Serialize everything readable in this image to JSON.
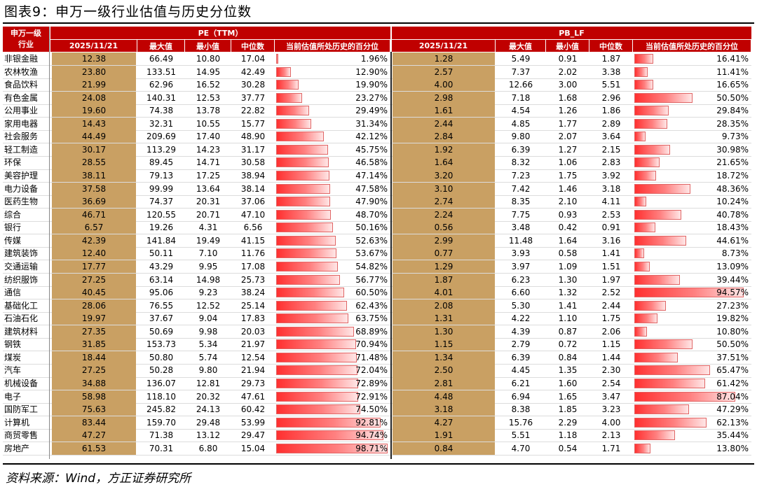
{
  "title": "图表9：申万一级行业估值与历史分位数",
  "source": "资料来源：Wind，方正证券研究所",
  "header": {
    "corner_line1": "申万一级",
    "corner_line2": "行业",
    "pe_group": "PE（TTM）",
    "pb_group": "PB_LF",
    "pe_cols": [
      "2025/11/21",
      "最大值",
      "最小值",
      "中位数",
      "当前估值所处历史的百分位"
    ],
    "pb_cols": [
      "2025/11/21",
      "最大值",
      "最小值",
      "中位数",
      "当前估值所处历史的百分位"
    ]
  },
  "colors": {
    "header": "#c00000",
    "current": "#c9a063",
    "bar": "#ff3030"
  },
  "rows": [
    {
      "name": "非银金融",
      "pe": [
        "12.38",
        "66.49",
        "10.80",
        "17.04",
        "1.96%"
      ],
      "pe_pct": 1.96,
      "pb": [
        "1.28",
        "5.49",
        "0.91",
        "1.87",
        "16.41%"
      ],
      "pb_pct": 16.41
    },
    {
      "name": "农林牧渔",
      "pe": [
        "23.80",
        "133.51",
        "14.95",
        "42.49",
        "12.90%"
      ],
      "pe_pct": 12.9,
      "pb": [
        "2.57",
        "7.37",
        "2.02",
        "3.38",
        "11.41%"
      ],
      "pb_pct": 11.41
    },
    {
      "name": "食品饮料",
      "pe": [
        "21.99",
        "62.96",
        "16.52",
        "30.28",
        "19.90%"
      ],
      "pe_pct": 19.9,
      "pb": [
        "4.00",
        "12.66",
        "3.00",
        "5.51",
        "16.65%"
      ],
      "pb_pct": 16.65
    },
    {
      "name": "有色金属",
      "pe": [
        "24.08",
        "140.31",
        "12.53",
        "37.77",
        "23.27%"
      ],
      "pe_pct": 23.27,
      "pb": [
        "2.98",
        "7.18",
        "1.68",
        "2.96",
        "50.50%"
      ],
      "pb_pct": 50.5
    },
    {
      "name": "公用事业",
      "pe": [
        "19.60",
        "74.38",
        "13.78",
        "22.82",
        "29.49%"
      ],
      "pe_pct": 29.49,
      "pb": [
        "1.61",
        "4.54",
        "1.26",
        "1.86",
        "29.84%"
      ],
      "pb_pct": 29.84
    },
    {
      "name": "家用电器",
      "pe": [
        "14.43",
        "32.31",
        "10.55",
        "15.77",
        "31.34%"
      ],
      "pe_pct": 31.34,
      "pb": [
        "2.44",
        "4.85",
        "1.77",
        "2.89",
        "28.35%"
      ],
      "pb_pct": 28.35
    },
    {
      "name": "社会服务",
      "pe": [
        "44.49",
        "209.69",
        "17.40",
        "48.90",
        "42.12%"
      ],
      "pe_pct": 42.12,
      "pb": [
        "2.84",
        "9.80",
        "2.07",
        "3.64",
        "9.73%"
      ],
      "pb_pct": 9.73
    },
    {
      "name": "轻工制造",
      "pe": [
        "30.17",
        "113.29",
        "14.23",
        "31.17",
        "45.75%"
      ],
      "pe_pct": 45.75,
      "pb": [
        "1.92",
        "6.39",
        "1.27",
        "2.15",
        "30.98%"
      ],
      "pb_pct": 30.98
    },
    {
      "name": "环保",
      "pe": [
        "28.55",
        "89.45",
        "14.71",
        "30.58",
        "46.58%"
      ],
      "pe_pct": 46.58,
      "pb": [
        "1.64",
        "8.32",
        "1.06",
        "2.83",
        "21.65%"
      ],
      "pb_pct": 21.65
    },
    {
      "name": "美容护理",
      "pe": [
        "38.11",
        "79.13",
        "17.25",
        "38.94",
        "47.14%"
      ],
      "pe_pct": 47.14,
      "pb": [
        "3.20",
        "7.23",
        "1.75",
        "3.92",
        "18.72%"
      ],
      "pb_pct": 18.72
    },
    {
      "name": "电力设备",
      "pe": [
        "37.58",
        "99.99",
        "13.64",
        "38.14",
        "47.58%"
      ],
      "pe_pct": 47.58,
      "pb": [
        "3.10",
        "7.42",
        "1.46",
        "3.18",
        "48.36%"
      ],
      "pb_pct": 48.36
    },
    {
      "name": "医药生物",
      "pe": [
        "36.69",
        "74.37",
        "20.31",
        "37.06",
        "47.90%"
      ],
      "pe_pct": 47.9,
      "pb": [
        "2.74",
        "8.35",
        "2.10",
        "4.11",
        "10.24%"
      ],
      "pb_pct": 10.24
    },
    {
      "name": "综合",
      "pe": [
        "46.71",
        "120.55",
        "20.71",
        "47.10",
        "48.70%"
      ],
      "pe_pct": 48.7,
      "pb": [
        "2.24",
        "7.75",
        "0.93",
        "2.53",
        "40.78%"
      ],
      "pb_pct": 40.78
    },
    {
      "name": "银行",
      "pe": [
        "6.57",
        "19.26",
        "4.31",
        "6.56",
        "50.16%"
      ],
      "pe_pct": 50.16,
      "pb": [
        "0.56",
        "3.48",
        "0.42",
        "0.91",
        "18.43%"
      ],
      "pb_pct": 18.43
    },
    {
      "name": "传媒",
      "pe": [
        "42.39",
        "141.84",
        "19.49",
        "41.15",
        "52.63%"
      ],
      "pe_pct": 52.63,
      "pb": [
        "2.99",
        "11.48",
        "1.64",
        "3.16",
        "44.61%"
      ],
      "pb_pct": 44.61
    },
    {
      "name": "建筑装饰",
      "pe": [
        "12.40",
        "50.11",
        "7.10",
        "11.76",
        "53.67%"
      ],
      "pe_pct": 53.67,
      "pb": [
        "0.77",
        "3.93",
        "0.58",
        "1.41",
        "8.73%"
      ],
      "pb_pct": 8.73
    },
    {
      "name": "交通运输",
      "pe": [
        "17.77",
        "43.29",
        "9.95",
        "17.08",
        "54.82%"
      ],
      "pe_pct": 54.82,
      "pb": [
        "1.29",
        "3.97",
        "1.09",
        "1.51",
        "13.09%"
      ],
      "pb_pct": 13.09
    },
    {
      "name": "纺织服饰",
      "pe": [
        "27.25",
        "63.14",
        "14.98",
        "25.73",
        "56.77%"
      ],
      "pe_pct": 56.77,
      "pb": [
        "1.87",
        "6.23",
        "1.30",
        "1.97",
        "39.44%"
      ],
      "pb_pct": 39.44
    },
    {
      "name": "通信",
      "pe": [
        "40.45",
        "95.06",
        "9.23",
        "38.24",
        "60.50%"
      ],
      "pe_pct": 60.5,
      "pb": [
        "4.01",
        "6.60",
        "1.32",
        "2.52",
        "94.57%"
      ],
      "pb_pct": 94.57
    },
    {
      "name": "基础化工",
      "pe": [
        "28.06",
        "76.55",
        "12.52",
        "25.14",
        "62.43%"
      ],
      "pe_pct": 62.43,
      "pb": [
        "2.08",
        "5.30",
        "1.41",
        "2.44",
        "27.23%"
      ],
      "pb_pct": 27.23
    },
    {
      "name": "石油石化",
      "pe": [
        "19.97",
        "37.67",
        "9.04",
        "17.83",
        "63.75%"
      ],
      "pe_pct": 63.75,
      "pb": [
        "1.31",
        "4.22",
        "1.10",
        "1.75",
        "19.82%"
      ],
      "pb_pct": 19.82
    },
    {
      "name": "建筑材料",
      "pe": [
        "27.35",
        "50.69",
        "9.98",
        "20.03",
        "68.89%"
      ],
      "pe_pct": 68.89,
      "pb": [
        "1.30",
        "4.39",
        "0.87",
        "2.06",
        "10.80%"
      ],
      "pb_pct": 10.8
    },
    {
      "name": "钢铁",
      "pe": [
        "31.85",
        "153.73",
        "5.34",
        "21.97",
        "70.94%"
      ],
      "pe_pct": 70.94,
      "pb": [
        "1.15",
        "2.79",
        "0.72",
        "1.15",
        "50.50%"
      ],
      "pb_pct": 50.5
    },
    {
      "name": "煤炭",
      "pe": [
        "18.44",
        "50.80",
        "5.74",
        "12.54",
        "71.48%"
      ],
      "pe_pct": 71.48,
      "pb": [
        "1.34",
        "6.39",
        "0.84",
        "1.44",
        "37.51%"
      ],
      "pb_pct": 37.51
    },
    {
      "name": "汽车",
      "pe": [
        "27.25",
        "50.28",
        "9.80",
        "21.94",
        "72.04%"
      ],
      "pe_pct": 72.04,
      "pb": [
        "2.50",
        "4.45",
        "1.35",
        "2.30",
        "65.47%"
      ],
      "pb_pct": 65.47
    },
    {
      "name": "机械设备",
      "pe": [
        "34.88",
        "136.07",
        "12.81",
        "29.73",
        "72.89%"
      ],
      "pe_pct": 72.89,
      "pb": [
        "2.81",
        "6.21",
        "1.60",
        "2.54",
        "61.42%"
      ],
      "pb_pct": 61.42
    },
    {
      "name": "电子",
      "pe": [
        "58.98",
        "118.10",
        "20.32",
        "47.61",
        "72.91%"
      ],
      "pe_pct": 72.91,
      "pb": [
        "4.48",
        "6.94",
        "1.65",
        "3.47",
        "87.04%"
      ],
      "pb_pct": 87.04
    },
    {
      "name": "国防军工",
      "pe": [
        "75.63",
        "245.82",
        "24.13",
        "60.42",
        "74.50%"
      ],
      "pe_pct": 74.5,
      "pb": [
        "3.18",
        "8.38",
        "1.85",
        "3.23",
        "47.29%"
      ],
      "pb_pct": 47.29
    },
    {
      "name": "计算机",
      "pe": [
        "83.44",
        "159.70",
        "29.48",
        "53.99",
        "92.81%"
      ],
      "pe_pct": 92.81,
      "pb": [
        "4.27",
        "15.76",
        "2.29",
        "4.00",
        "62.13%"
      ],
      "pb_pct": 62.13
    },
    {
      "name": "商贸零售",
      "pe": [
        "47.27",
        "71.38",
        "13.12",
        "29.47",
        "94.74%"
      ],
      "pe_pct": 94.74,
      "pb": [
        "1.91",
        "5.51",
        "1.18",
        "2.13",
        "35.44%"
      ],
      "pb_pct": 35.44
    },
    {
      "name": "房地产",
      "pe": [
        "61.53",
        "70.31",
        "6.80",
        "15.04",
        "98.71%"
      ],
      "pe_pct": 98.71,
      "pb": [
        "0.84",
        "4.70",
        "0.54",
        "1.71",
        "13.80%"
      ],
      "pb_pct": 13.8
    }
  ]
}
